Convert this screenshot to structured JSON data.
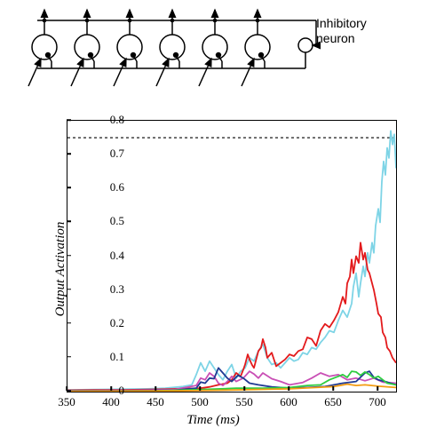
{
  "diagram": {
    "label_line1": "Inhibitory",
    "label_line2": "neuron",
    "label_fontsize": 14,
    "excitatory_count": 6,
    "excitatory_radius": 14,
    "inhibitory_radius": 8,
    "stroke_color": "#000000",
    "stroke_width": 1.5
  },
  "chart": {
    "type": "line",
    "xlabel": "Time (ms)",
    "ylabel": "Output Activation",
    "label_fontsize": 15,
    "tick_fontsize": 13,
    "xlim": [
      350,
      720
    ],
    "ylim": [
      0,
      0.8
    ],
    "xticks": [
      350,
      400,
      450,
      500,
      550,
      600,
      650,
      700
    ],
    "yticks": [
      0,
      0.1,
      0.2,
      0.3,
      0.4,
      0.5,
      0.6,
      0.7,
      0.8
    ],
    "threshold": 0.75,
    "threshold_style": "dotted",
    "threshold_color": "#000000",
    "background_color": "#ffffff",
    "border_color": "#000000",
    "line_width": 1.8,
    "series": [
      {
        "name": "cyan",
        "color": "#7ED4E6",
        "points": [
          [
            350,
            0.005
          ],
          [
            380,
            0.006
          ],
          [
            410,
            0.007
          ],
          [
            440,
            0.008
          ],
          [
            460,
            0.01
          ],
          [
            480,
            0.015
          ],
          [
            490,
            0.02
          ],
          [
            495,
            0.05
          ],
          [
            500,
            0.085
          ],
          [
            505,
            0.06
          ],
          [
            510,
            0.09
          ],
          [
            515,
            0.07
          ],
          [
            520,
            0.05
          ],
          [
            525,
            0.035
          ],
          [
            530,
            0.06
          ],
          [
            535,
            0.08
          ],
          [
            540,
            0.04
          ],
          [
            545,
            0.06
          ],
          [
            550,
            0.07
          ],
          [
            555,
            0.1
          ],
          [
            560,
            0.09
          ],
          [
            565,
            0.12
          ],
          [
            570,
            0.14
          ],
          [
            575,
            0.1
          ],
          [
            580,
            0.08
          ],
          [
            585,
            0.085
          ],
          [
            590,
            0.07
          ],
          [
            595,
            0.085
          ],
          [
            600,
            0.1
          ],
          [
            605,
            0.09
          ],
          [
            610,
            0.095
          ],
          [
            615,
            0.115
          ],
          [
            620,
            0.11
          ],
          [
            625,
            0.13
          ],
          [
            630,
            0.125
          ],
          [
            635,
            0.145
          ],
          [
            640,
            0.16
          ],
          [
            645,
            0.18
          ],
          [
            650,
            0.175
          ],
          [
            655,
            0.21
          ],
          [
            660,
            0.24
          ],
          [
            665,
            0.22
          ],
          [
            670,
            0.26
          ],
          [
            672,
            0.31
          ],
          [
            675,
            0.35
          ],
          [
            678,
            0.28
          ],
          [
            680,
            0.32
          ],
          [
            683,
            0.37
          ],
          [
            685,
            0.34
          ],
          [
            688,
            0.41
          ],
          [
            690,
            0.38
          ],
          [
            693,
            0.44
          ],
          [
            695,
            0.41
          ],
          [
            697,
            0.49
          ],
          [
            700,
            0.54
          ],
          [
            702,
            0.5
          ],
          [
            704,
            0.62
          ],
          [
            706,
            0.68
          ],
          [
            708,
            0.64
          ],
          [
            710,
            0.72
          ],
          [
            712,
            0.69
          ],
          [
            714,
            0.77
          ],
          [
            716,
            0.73
          ],
          [
            718,
            0.76
          ],
          [
            720,
            0.66
          ]
        ]
      },
      {
        "name": "red",
        "color": "#E31A1C",
        "points": [
          [
            350,
            0.004
          ],
          [
            380,
            0.005
          ],
          [
            410,
            0.005
          ],
          [
            440,
            0.006
          ],
          [
            460,
            0.007
          ],
          [
            480,
            0.009
          ],
          [
            500,
            0.01
          ],
          [
            510,
            0.014
          ],
          [
            520,
            0.02
          ],
          [
            530,
            0.025
          ],
          [
            535,
            0.035
          ],
          [
            540,
            0.055
          ],
          [
            545,
            0.045
          ],
          [
            548,
            0.065
          ],
          [
            550,
            0.08
          ],
          [
            553,
            0.11
          ],
          [
            555,
            0.095
          ],
          [
            558,
            0.078
          ],
          [
            560,
            0.07
          ],
          [
            565,
            0.12
          ],
          [
            568,
            0.13
          ],
          [
            570,
            0.155
          ],
          [
            573,
            0.13
          ],
          [
            575,
            0.1
          ],
          [
            580,
            0.115
          ],
          [
            585,
            0.075
          ],
          [
            590,
            0.085
          ],
          [
            595,
            0.095
          ],
          [
            600,
            0.11
          ],
          [
            605,
            0.105
          ],
          [
            610,
            0.12
          ],
          [
            615,
            0.125
          ],
          [
            620,
            0.16
          ],
          [
            625,
            0.155
          ],
          [
            630,
            0.135
          ],
          [
            635,
            0.18
          ],
          [
            640,
            0.2
          ],
          [
            645,
            0.19
          ],
          [
            650,
            0.21
          ],
          [
            655,
            0.235
          ],
          [
            660,
            0.28
          ],
          [
            663,
            0.26
          ],
          [
            665,
            0.32
          ],
          [
            668,
            0.34
          ],
          [
            670,
            0.39
          ],
          [
            672,
            0.35
          ],
          [
            675,
            0.4
          ],
          [
            678,
            0.38
          ],
          [
            680,
            0.44
          ],
          [
            683,
            0.39
          ],
          [
            685,
            0.41
          ],
          [
            688,
            0.36
          ],
          [
            690,
            0.35
          ],
          [
            693,
            0.32
          ],
          [
            695,
            0.3
          ],
          [
            698,
            0.26
          ],
          [
            700,
            0.23
          ],
          [
            703,
            0.22
          ],
          [
            705,
            0.175
          ],
          [
            708,
            0.16
          ],
          [
            710,
            0.13
          ],
          [
            713,
            0.12
          ],
          [
            716,
            0.1
          ],
          [
            720,
            0.085
          ]
        ]
      },
      {
        "name": "magenta",
        "color": "#C94FB5",
        "points": [
          [
            350,
            0.003
          ],
          [
            420,
            0.004
          ],
          [
            470,
            0.006
          ],
          [
            495,
            0.018
          ],
          [
            500,
            0.04
          ],
          [
            505,
            0.035
          ],
          [
            510,
            0.055
          ],
          [
            515,
            0.045
          ],
          [
            520,
            0.025
          ],
          [
            525,
            0.018
          ],
          [
            530,
            0.03
          ],
          [
            535,
            0.045
          ],
          [
            540,
            0.03
          ],
          [
            548,
            0.04
          ],
          [
            555,
            0.06
          ],
          [
            560,
            0.052
          ],
          [
            565,
            0.04
          ],
          [
            570,
            0.055
          ],
          [
            580,
            0.038
          ],
          [
            590,
            0.03
          ],
          [
            600,
            0.02
          ],
          [
            615,
            0.027
          ],
          [
            625,
            0.04
          ],
          [
            635,
            0.055
          ],
          [
            645,
            0.045
          ],
          [
            655,
            0.05
          ],
          [
            665,
            0.035
          ],
          [
            675,
            0.04
          ],
          [
            685,
            0.032
          ],
          [
            695,
            0.04
          ],
          [
            705,
            0.028
          ],
          [
            720,
            0.025
          ]
        ]
      },
      {
        "name": "darkblue",
        "color": "#1F3A93",
        "points": [
          [
            350,
            0.002
          ],
          [
            420,
            0.003
          ],
          [
            470,
            0.004
          ],
          [
            495,
            0.01
          ],
          [
            500,
            0.028
          ],
          [
            505,
            0.025
          ],
          [
            510,
            0.04
          ],
          [
            515,
            0.038
          ],
          [
            520,
            0.07
          ],
          [
            525,
            0.055
          ],
          [
            530,
            0.04
          ],
          [
            535,
            0.03
          ],
          [
            542,
            0.048
          ],
          [
            548,
            0.04
          ],
          [
            555,
            0.025
          ],
          [
            565,
            0.02
          ],
          [
            580,
            0.014
          ],
          [
            600,
            0.01
          ],
          [
            620,
            0.012
          ],
          [
            640,
            0.015
          ],
          [
            660,
            0.025
          ],
          [
            675,
            0.03
          ],
          [
            685,
            0.055
          ],
          [
            690,
            0.06
          ],
          [
            695,
            0.042
          ],
          [
            700,
            0.035
          ],
          [
            710,
            0.028
          ],
          [
            720,
            0.02
          ]
        ]
      },
      {
        "name": "green",
        "color": "#2ECC40",
        "points": [
          [
            350,
            0.001
          ],
          [
            450,
            0.002
          ],
          [
            500,
            0.006
          ],
          [
            540,
            0.01
          ],
          [
            570,
            0.01
          ],
          [
            600,
            0.012
          ],
          [
            620,
            0.018
          ],
          [
            635,
            0.02
          ],
          [
            645,
            0.035
          ],
          [
            655,
            0.045
          ],
          [
            660,
            0.05
          ],
          [
            665,
            0.042
          ],
          [
            670,
            0.06
          ],
          [
            675,
            0.058
          ],
          [
            680,
            0.048
          ],
          [
            685,
            0.058
          ],
          [
            690,
            0.05
          ],
          [
            695,
            0.04
          ],
          [
            700,
            0.045
          ],
          [
            705,
            0.035
          ],
          [
            710,
            0.025
          ],
          [
            720,
            0.02
          ]
        ]
      },
      {
        "name": "orange",
        "color": "#F39C12",
        "points": [
          [
            350,
            0.001
          ],
          [
            470,
            0.002
          ],
          [
            520,
            0.004
          ],
          [
            560,
            0.006
          ],
          [
            600,
            0.008
          ],
          [
            630,
            0.012
          ],
          [
            650,
            0.015
          ],
          [
            665,
            0.022
          ],
          [
            675,
            0.018
          ],
          [
            685,
            0.02
          ],
          [
            700,
            0.016
          ],
          [
            720,
            0.012
          ]
        ]
      }
    ]
  }
}
